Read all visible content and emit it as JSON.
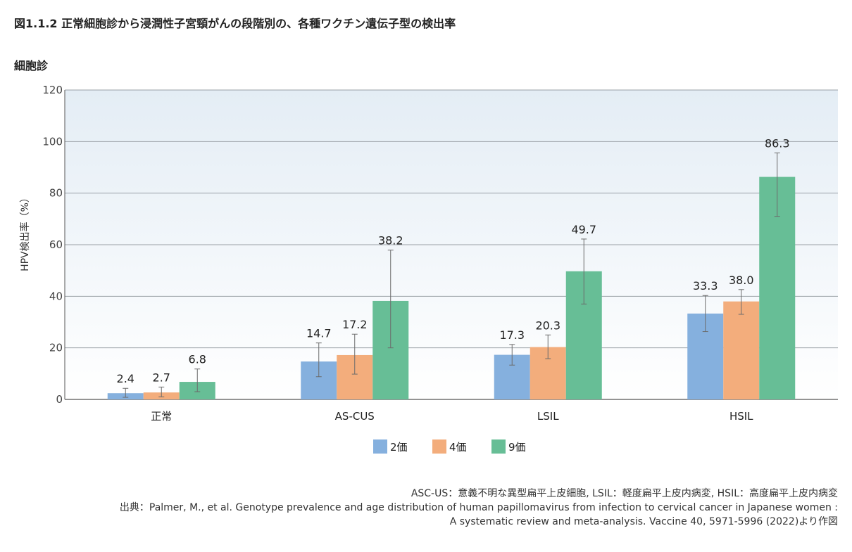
{
  "figure_title": "図1.1.2  正常細胞診から浸潤性子宮頸がんの段階別の、各種ワクチン遺伝子型の検出率",
  "panel_title": "細胞診",
  "chart_data": {
    "type": "bar",
    "ylabel": "HPV検出率（%）",
    "xlabel": "",
    "ylim": [
      0,
      120
    ],
    "yticks": [
      0,
      20,
      40,
      60,
      80,
      100,
      120
    ],
    "grid": true,
    "legend_position": "bottom-center",
    "categories": [
      "正常",
      "AS-CUS",
      "LSIL",
      "HSIL"
    ],
    "series": [
      {
        "name": "2価",
        "color": "#85b0de",
        "values": [
          2.4,
          14.7,
          17.3,
          33.3
        ],
        "err_low": [
          0.8,
          8.8,
          13.3,
          26.3
        ],
        "err_high": [
          4.3,
          21.9,
          21.3,
          40.3
        ]
      },
      {
        "name": "4価",
        "color": "#f3ad7c",
        "values": [
          2.7,
          17.2,
          20.3,
          38.0
        ],
        "err_low": [
          1.0,
          9.8,
          15.8,
          33.0
        ],
        "err_high": [
          4.8,
          25.3,
          25.0,
          42.6
        ]
      },
      {
        "name": "9価",
        "color": "#67be96",
        "values": [
          6.8,
          38.2,
          49.7,
          86.3
        ],
        "err_low": [
          3.0,
          20.0,
          37.0,
          71.0
        ],
        "err_high": [
          11.8,
          57.9,
          62.2,
          95.6
        ]
      }
    ],
    "data_labels": [
      [
        "2.4",
        "14.7",
        "17.3",
        "33.3"
      ],
      [
        "2.7",
        "17.2",
        "20.3",
        "38.0"
      ],
      [
        "6.8",
        "38.2",
        "49.7",
        "86.3"
      ]
    ]
  },
  "footer": {
    "line1": "ASC-US：意義不明な異型扁平上皮細胞, LSIL：軽度扁平上皮内病変, HSIL：高度扁平上皮内病変",
    "line2": "出典：Palmer, M., et al. Genotype prevalence and age distribution of human papillomavirus from infection to cervical cancer in Japanese women :",
    "line3": "A systematic review and meta-analysis. Vaccine 40, 5971-5996 (2022)より作図"
  }
}
